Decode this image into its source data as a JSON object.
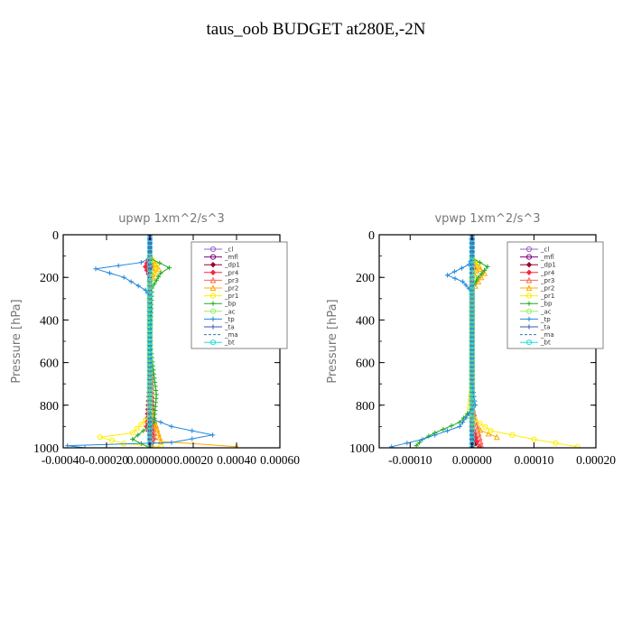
{
  "title": "taus_oob  BUDGET at280E,-2N",
  "chart_data": [
    {
      "type": "line",
      "title": "upwp   1xm^2/s^3",
      "ylabel": "Pressure [hPa]",
      "xlim": [
        -0.0004,
        0.0006
      ],
      "ylim": [
        1000,
        0
      ],
      "yticks": [
        "0",
        "200",
        "400",
        "600",
        "800",
        "1000"
      ],
      "xticks": [
        "-0.00040",
        "-0.00020",
        "0.000000",
        "0.00020",
        "0.00040",
        "0.00060"
      ],
      "grid": false,
      "legend_position": "top-right",
      "series": [
        {
          "name": "_cl",
          "color": "#9966cc",
          "marker": "circle",
          "points": [
            [
              0,
              0
            ],
            [
              0,
              200
            ],
            [
              0,
              500
            ],
            [
              0,
              800
            ],
            [
              0,
              1000
            ]
          ]
        },
        {
          "name": "_mfl",
          "color": "#800080",
          "marker": "circle",
          "points": [
            [
              0,
              0
            ],
            [
              0,
              200
            ],
            [
              0,
              500
            ],
            [
              0,
              800
            ],
            [
              0,
              1000
            ]
          ]
        },
        {
          "name": "_dp1",
          "color": "#990033",
          "marker": "diamond",
          "points": [
            [
              0,
              100
            ],
            [
              5e-06,
              150
            ],
            [
              0,
              200
            ],
            [
              0,
              500
            ],
            [
              1e-05,
              900
            ],
            [
              1.5e-05,
              960
            ],
            [
              0,
              1000
            ]
          ]
        },
        {
          "name": "_pr4",
          "color": "#ff2244",
          "marker": "diamond",
          "points": [
            [
              0,
              100
            ],
            [
              -2e-05,
              150
            ],
            [
              0,
              200
            ],
            [
              0,
              700
            ],
            [
              -1.5e-05,
              900
            ],
            [
              1e-05,
              960
            ],
            [
              0,
              1000
            ]
          ]
        },
        {
          "name": "_pr3",
          "color": "#ff6655",
          "marker": "triangle",
          "points": [
            [
              0,
              100
            ],
            [
              2e-05,
              150
            ],
            [
              0,
              200
            ],
            [
              0,
              600
            ],
            [
              2e-05,
              950
            ],
            [
              0,
              1000
            ]
          ]
        },
        {
          "name": "_pr2",
          "color": "#ffaa00",
          "marker": "triangle",
          "points": [
            [
              0,
              100
            ],
            [
              4e-05,
              160
            ],
            [
              0,
              220
            ],
            [
              0,
              800
            ],
            [
              5e-05,
              970
            ],
            [
              0.0004,
              995
            ]
          ]
        },
        {
          "name": "_pr1",
          "color": "#ffee00",
          "marker": "circle",
          "points": [
            [
              0,
              100
            ],
            [
              3e-05,
              150
            ],
            [
              0,
              230
            ],
            [
              0,
              700
            ],
            [
              0,
              850
            ],
            [
              -8e-05,
              930
            ],
            [
              -0.00023,
              950
            ],
            [
              -0.00012,
              980
            ],
            [
              5e-05,
              995
            ]
          ]
        },
        {
          "name": "_bp",
          "color": "#22aa22",
          "marker": "cross",
          "points": [
            [
              0,
              110
            ],
            [
              9e-05,
              155
            ],
            [
              5e-05,
              180
            ],
            [
              1e-05,
              250
            ],
            [
              0,
              500
            ],
            [
              3e-05,
              750
            ],
            [
              2e-05,
              880
            ],
            [
              -8e-05,
              960
            ],
            [
              0,
              1000
            ]
          ]
        },
        {
          "name": "_ac",
          "color": "#99ee66",
          "marker": "circle",
          "points": [
            [
              0,
              100
            ],
            [
              0,
              500
            ],
            [
              0,
              1000
            ]
          ]
        },
        {
          "name": "_tp",
          "color": "#2288dd",
          "marker": "cross",
          "points": [
            [
              0,
              110
            ],
            [
              -4e-05,
              130
            ],
            [
              -0.00025,
              160
            ],
            [
              -0.00012,
              200
            ],
            [
              -2e-05,
              260
            ],
            [
              0,
              290
            ],
            [
              0,
              700
            ],
            [
              0,
              860
            ],
            [
              0.0001,
              900
            ],
            [
              0.00029,
              940
            ],
            [
              0.0001,
              975
            ],
            [
              -0.00038,
              990
            ],
            [
              -0.0003,
              1000
            ]
          ]
        },
        {
          "name": "_ta",
          "color": "#3355bb",
          "marker": "cross",
          "points": [
            [
              0,
              0
            ],
            [
              0,
              1000
            ]
          ]
        },
        {
          "name": "_ma",
          "color": "#3377aa",
          "marker": "none",
          "points": [
            [
              0,
              0
            ],
            [
              0,
              1000
            ]
          ]
        },
        {
          "name": "_bt",
          "color": "#22dddd",
          "marker": "circle",
          "points": [
            [
              0,
              0
            ],
            [
              0,
              1000
            ]
          ]
        }
      ]
    },
    {
      "type": "line",
      "title": "vpwp   1xm^2/s^3",
      "ylabel": "Pressure [hPa]",
      "xlim": [
        -0.00015,
        0.0002
      ],
      "ylim": [
        1000,
        0
      ],
      "yticks": [
        "0",
        "200",
        "400",
        "600",
        "800",
        "1000"
      ],
      "xticks": [
        "-0.00010",
        "0.00000",
        "0.00010",
        "0.00020"
      ],
      "grid": false,
      "legend_position": "top-right",
      "series": [
        {
          "name": "_cl",
          "color": "#9966cc",
          "marker": "circle",
          "points": [
            [
              0,
              0
            ],
            [
              0,
              200
            ],
            [
              0,
              500
            ],
            [
              0,
              800
            ],
            [
              0,
              1000
            ]
          ]
        },
        {
          "name": "_mfl",
          "color": "#800080",
          "marker": "circle",
          "points": [
            [
              0,
              0
            ],
            [
              0,
              200
            ],
            [
              0,
              500
            ],
            [
              0,
              800
            ],
            [
              0,
              1000
            ]
          ]
        },
        {
          "name": "_dp1",
          "color": "#990033",
          "marker": "diamond",
          "points": [
            [
              0,
              120
            ],
            [
              3e-06,
              160
            ],
            [
              0,
              200
            ],
            [
              0,
              900
            ],
            [
              6e-06,
              980
            ],
            [
              0,
              1000
            ]
          ]
        },
        {
          "name": "_pr4",
          "color": "#ff2244",
          "marker": "diamond",
          "points": [
            [
              0,
              120
            ],
            [
              5e-06,
              150
            ],
            [
              0,
              200
            ],
            [
              0,
              900
            ],
            [
              8e-06,
              970
            ],
            [
              1.2e-05,
              995
            ]
          ]
        },
        {
          "name": "_pr3",
          "color": "#ff6655",
          "marker": "triangle",
          "points": [
            [
              0,
              120
            ],
            [
              1e-05,
              150
            ],
            [
              0,
              200
            ],
            [
              0,
              800
            ],
            [
              1.5e-05,
              990
            ]
          ]
        },
        {
          "name": "_pr2",
          "color": "#ffaa00",
          "marker": "triangle",
          "points": [
            [
              0,
              120
            ],
            [
              2e-05,
              180
            ],
            [
              1e-05,
              220
            ],
            [
              0,
              260
            ],
            [
              0,
              900
            ],
            [
              4e-05,
              950
            ]
          ]
        },
        {
          "name": "_pr1",
          "color": "#ffee00",
          "marker": "circle",
          "points": [
            [
              0,
              110
            ],
            [
              1e-05,
              140
            ],
            [
              0,
              220
            ],
            [
              0,
              700
            ],
            [
              -5e-06,
              850
            ],
            [
              3e-05,
              920
            ],
            [
              0.0001,
              960
            ],
            [
              0.00017,
              995
            ]
          ]
        },
        {
          "name": "_bp",
          "color": "#22aa22",
          "marker": "cross",
          "points": [
            [
              0,
              110
            ],
            [
              2.5e-05,
              150
            ],
            [
              1e-05,
              200
            ],
            [
              0,
              250
            ],
            [
              0,
              700
            ],
            [
              5e-06,
              800
            ],
            [
              -2e-05,
              880
            ],
            [
              -6e-05,
              930
            ],
            [
              -8e-05,
              960
            ],
            [
              -9e-05,
              990
            ]
          ]
        },
        {
          "name": "_ac",
          "color": "#99ee66",
          "marker": "circle",
          "points": [
            [
              0,
              100
            ],
            [
              0,
              500
            ],
            [
              0,
              1000
            ]
          ]
        },
        {
          "name": "_tp",
          "color": "#2288dd",
          "marker": "cross",
          "points": [
            [
              0,
              110
            ],
            [
              -5e-06,
              140
            ],
            [
              -4e-05,
              190
            ],
            [
              -1.5e-05,
              220
            ],
            [
              0,
              270
            ],
            [
              0,
              700
            ],
            [
              5e-06,
              800
            ],
            [
              -2e-05,
              900
            ],
            [
              -8e-05,
              960
            ],
            [
              -0.00013,
              995
            ]
          ]
        },
        {
          "name": "_ta",
          "color": "#3355bb",
          "marker": "cross",
          "points": [
            [
              0,
              0
            ],
            [
              0,
              1000
            ]
          ]
        },
        {
          "name": "_ma",
          "color": "#3377aa",
          "marker": "none",
          "points": [
            [
              0,
              0
            ],
            [
              0,
              1000
            ]
          ]
        },
        {
          "name": "_bt",
          "color": "#22dddd",
          "marker": "circle",
          "points": [
            [
              0,
              0
            ],
            [
              0,
              1000
            ]
          ]
        }
      ]
    }
  ]
}
